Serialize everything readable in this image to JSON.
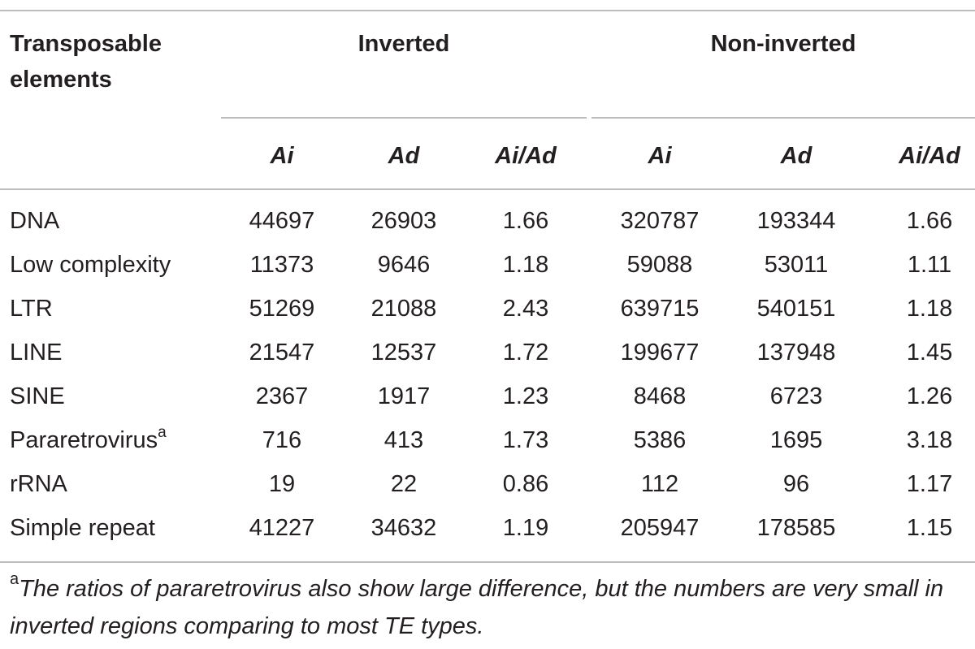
{
  "table": {
    "header": {
      "row_label": "Transposable elements",
      "groups": [
        {
          "label": "Inverted",
          "columns": [
            "Ai",
            "Ad",
            "Ai/Ad"
          ]
        },
        {
          "label": "Non-inverted",
          "columns": [
            "Ai",
            "Ad",
            "Ai/Ad"
          ]
        }
      ]
    },
    "rows": [
      {
        "label": "DNA",
        "sup": "",
        "values": [
          "44697",
          "26903",
          "1.66",
          "320787",
          "193344",
          "1.66"
        ]
      },
      {
        "label": "Low complexity",
        "sup": "",
        "values": [
          "11373",
          "9646",
          "1.18",
          "59088",
          "53011",
          "1.11"
        ]
      },
      {
        "label": "LTR",
        "sup": "",
        "values": [
          "51269",
          "21088",
          "2.43",
          "639715",
          "540151",
          "1.18"
        ]
      },
      {
        "label": "LINE",
        "sup": "",
        "values": [
          "21547",
          "12537",
          "1.72",
          "199677",
          "137948",
          "1.45"
        ]
      },
      {
        "label": "SINE",
        "sup": "",
        "values": [
          "2367",
          "1917",
          "1.23",
          "8468",
          "6723",
          "1.26"
        ]
      },
      {
        "label": "Pararetrovirus",
        "sup": "a",
        "values": [
          "716",
          "413",
          "1.73",
          "5386",
          "1695",
          "3.18"
        ]
      },
      {
        "label": "rRNA",
        "sup": "",
        "values": [
          "19",
          "22",
          "0.86",
          "112",
          "96",
          "1.17"
        ]
      },
      {
        "label": "Simple repeat",
        "sup": "",
        "values": [
          "41227",
          "34632",
          "1.19",
          "205947",
          "178585",
          "1.15"
        ]
      }
    ],
    "footnote": {
      "marker": "a",
      "text": "The ratios of pararetrovirus also show large difference, but the numbers are very small in inverted regions comparing to most TE types."
    }
  }
}
